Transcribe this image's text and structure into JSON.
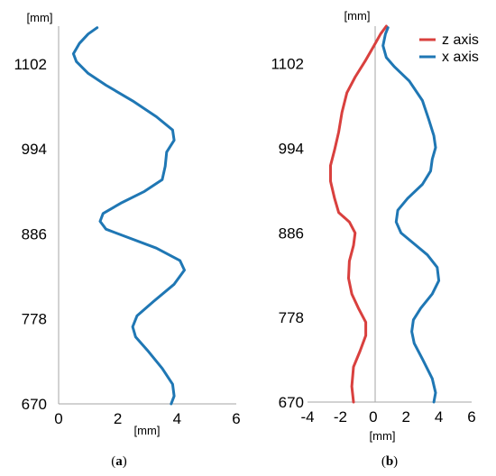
{
  "chart_data": [
    {
      "id": "a",
      "type": "line",
      "caption": "(a)",
      "xunit": "[mm]",
      "yunit": "[mm]",
      "xlim": [
        0,
        6
      ],
      "ylim": [
        670,
        1150
      ],
      "xticks": [
        0,
        2,
        4,
        6
      ],
      "yticks": [
        670,
        778,
        886,
        994,
        1102
      ],
      "grid": false,
      "series": [
        {
          "name": "",
          "color": "#1f77b4",
          "points": [
            [
              3.8,
              670
            ],
            [
              3.9,
              680
            ],
            [
              3.85,
              695
            ],
            [
              3.5,
              715
            ],
            [
              3.0,
              738
            ],
            [
              2.6,
              755
            ],
            [
              2.5,
              768
            ],
            [
              2.65,
              782
            ],
            [
              3.2,
              800
            ],
            [
              3.9,
              822
            ],
            [
              4.25,
              840
            ],
            [
              4.1,
              852
            ],
            [
              3.3,
              868
            ],
            [
              2.3,
              882
            ],
            [
              1.6,
              892
            ],
            [
              1.4,
              902
            ],
            [
              1.5,
              912
            ],
            [
              2.1,
              925
            ],
            [
              2.9,
              940
            ],
            [
              3.5,
              955
            ],
            [
              3.6,
              972
            ],
            [
              3.65,
              990
            ],
            [
              3.9,
              1005
            ],
            [
              3.85,
              1018
            ],
            [
              3.3,
              1035
            ],
            [
              2.5,
              1055
            ],
            [
              1.6,
              1075
            ],
            [
              1.0,
              1090
            ],
            [
              0.6,
              1105
            ],
            [
              0.5,
              1115
            ],
            [
              0.7,
              1128
            ],
            [
              1.0,
              1140
            ],
            [
              1.3,
              1148
            ]
          ]
        }
      ]
    },
    {
      "id": "b",
      "type": "line",
      "caption": "(b)",
      "xunit": "[mm]",
      "yunit": "[mm]",
      "xlim": [
        -4,
        6
      ],
      "ylim": [
        670,
        1150
      ],
      "xticks": [
        -4,
        -2,
        0,
        2,
        4,
        6
      ],
      "yticks": [
        670,
        778,
        886,
        994,
        1102
      ],
      "grid": false,
      "legend": "top-right",
      "series": [
        {
          "name": "z axis",
          "color": "#d9403e",
          "points": [
            [
              -1.2,
              670
            ],
            [
              -1.3,
              690
            ],
            [
              -1.2,
              715
            ],
            [
              -0.8,
              735
            ],
            [
              -0.45,
              755
            ],
            [
              -0.45,
              772
            ],
            [
              -0.9,
              790
            ],
            [
              -1.3,
              808
            ],
            [
              -1.5,
              828
            ],
            [
              -1.45,
              850
            ],
            [
              -1.2,
              870
            ],
            [
              -1.1,
              886
            ],
            [
              -1.45,
              900
            ],
            [
              -2.1,
              912
            ],
            [
              -2.35,
              930
            ],
            [
              -2.6,
              952
            ],
            [
              -2.6,
              972
            ],
            [
              -2.35,
              992
            ],
            [
              -2.1,
              1015
            ],
            [
              -1.9,
              1040
            ],
            [
              -1.6,
              1065
            ],
            [
              -1.1,
              1085
            ],
            [
              -0.5,
              1105
            ],
            [
              0.05,
              1125
            ],
            [
              0.45,
              1140
            ],
            [
              0.8,
              1150
            ]
          ]
        },
        {
          "name": "x axis",
          "color": "#1f77b4",
          "points": [
            [
              3.7,
              670
            ],
            [
              3.8,
              682
            ],
            [
              3.6,
              700
            ],
            [
              3.0,
              725
            ],
            [
              2.5,
              745
            ],
            [
              2.35,
              760
            ],
            [
              2.45,
              775
            ],
            [
              2.9,
              790
            ],
            [
              3.6,
              808
            ],
            [
              4.0,
              825
            ],
            [
              3.9,
              842
            ],
            [
              3.3,
              858
            ],
            [
              2.5,
              872
            ],
            [
              1.7,
              886
            ],
            [
              1.4,
              900
            ],
            [
              1.5,
              915
            ],
            [
              2.1,
              930
            ],
            [
              3.0,
              948
            ],
            [
              3.5,
              965
            ],
            [
              3.6,
              980
            ],
            [
              3.8,
              995
            ],
            [
              3.7,
              1010
            ],
            [
              3.4,
              1030
            ],
            [
              3.0,
              1055
            ],
            [
              2.2,
              1080
            ],
            [
              1.3,
              1098
            ],
            [
              0.8,
              1110
            ],
            [
              0.6,
              1125
            ],
            [
              0.75,
              1140
            ],
            [
              0.9,
              1148
            ]
          ]
        }
      ]
    }
  ]
}
